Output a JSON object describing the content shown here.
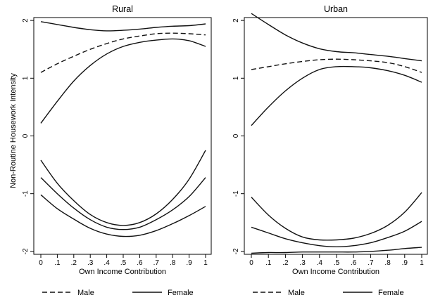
{
  "figure": {
    "ylabel": "Non-Routine Housework Intensity"
  },
  "chart_data": [
    {
      "type": "line",
      "title": "Rural",
      "xlabel": "Own Income Contribution",
      "ylabel": "Non-Routine Housework Intensity",
      "xlim": [
        0,
        1
      ],
      "ylim": [
        -2.05,
        2.05
      ],
      "xticks": [
        0,
        0.1,
        0.2,
        0.3,
        0.4,
        0.5,
        0.6,
        0.7,
        0.8,
        0.9,
        1
      ],
      "xtick_labels": [
        "0",
        ".1",
        ".2",
        ".3",
        ".4",
        ".5",
        ".6",
        ".7",
        ".8",
        ".9",
        "1"
      ],
      "yticks": [
        -2,
        -1,
        0,
        1,
        2
      ],
      "ytick_labels": [
        "-2",
        "-1",
        "0",
        "1",
        "2"
      ],
      "x": [
        0,
        0.1,
        0.2,
        0.3,
        0.4,
        0.5,
        0.6,
        0.7,
        0.8,
        0.9,
        1
      ],
      "series": [
        {
          "name": "Male",
          "style": "dashed",
          "values": [
            1.1,
            1.25,
            1.38,
            1.5,
            1.6,
            1.68,
            1.73,
            1.77,
            1.78,
            1.77,
            1.75
          ]
        },
        {
          "style": "solid",
          "values": [
            1.98,
            1.93,
            1.88,
            1.84,
            1.82,
            1.83,
            1.85,
            1.88,
            1.9,
            1.91,
            1.94
          ]
        },
        {
          "style": "solid",
          "values": [
            0.22,
            0.6,
            0.95,
            1.22,
            1.42,
            1.55,
            1.62,
            1.66,
            1.68,
            1.65,
            1.55
          ]
        },
        {
          "name": "Female",
          "style": "solid",
          "values": [
            -0.72,
            -1.0,
            -1.25,
            -1.45,
            -1.58,
            -1.62,
            -1.58,
            -1.45,
            -1.28,
            -1.05,
            -0.72
          ]
        },
        {
          "style": "solid",
          "values": [
            -0.42,
            -0.82,
            -1.12,
            -1.36,
            -1.5,
            -1.55,
            -1.5,
            -1.35,
            -1.1,
            -0.75,
            -0.25
          ]
        },
        {
          "style": "solid",
          "values": [
            -1.02,
            -1.26,
            -1.44,
            -1.6,
            -1.7,
            -1.74,
            -1.72,
            -1.64,
            -1.52,
            -1.38,
            -1.22
          ]
        }
      ],
      "legend": {
        "position": "bottom",
        "entries": [
          {
            "label": "Male",
            "style": "dashed"
          },
          {
            "label": "Female",
            "style": "solid"
          }
        ]
      }
    },
    {
      "type": "line",
      "title": "Urban",
      "xlabel": "Own Income Contribution",
      "xlim": [
        0,
        1
      ],
      "ylim": [
        -2.05,
        2.05
      ],
      "xticks": [
        0,
        0.1,
        0.2,
        0.3,
        0.4,
        0.5,
        0.6,
        0.7,
        0.8,
        0.9,
        1
      ],
      "xtick_labels": [
        "0",
        ".1",
        ".2",
        ".3",
        ".4",
        ".5",
        ".6",
        ".7",
        ".8",
        ".9",
        "1"
      ],
      "yticks": [
        -2,
        -1,
        0,
        1,
        2
      ],
      "ytick_labels": [
        "-2",
        "-1",
        "0",
        "1",
        "2"
      ],
      "x": [
        0,
        0.1,
        0.2,
        0.3,
        0.4,
        0.5,
        0.6,
        0.7,
        0.8,
        0.9,
        1
      ],
      "series": [
        {
          "name": "Male",
          "style": "dashed",
          "values": [
            1.15,
            1.2,
            1.25,
            1.29,
            1.32,
            1.33,
            1.32,
            1.3,
            1.27,
            1.2,
            1.1
          ]
        },
        {
          "style": "solid",
          "values": [
            2.12,
            1.93,
            1.75,
            1.61,
            1.51,
            1.46,
            1.44,
            1.41,
            1.38,
            1.34,
            1.3
          ]
        },
        {
          "style": "solid",
          "values": [
            0.18,
            0.5,
            0.78,
            1.0,
            1.15,
            1.2,
            1.2,
            1.18,
            1.13,
            1.05,
            0.93
          ]
        },
        {
          "name": "Female",
          "style": "solid",
          "values": [
            -1.58,
            -1.68,
            -1.78,
            -1.85,
            -1.9,
            -1.92,
            -1.9,
            -1.85,
            -1.76,
            -1.65,
            -1.48
          ]
        },
        {
          "style": "solid",
          "values": [
            -1.06,
            -1.37,
            -1.6,
            -1.75,
            -1.8,
            -1.8,
            -1.77,
            -1.69,
            -1.55,
            -1.32,
            -0.98
          ]
        },
        {
          "style": "solid",
          "values": [
            -2.03,
            -2.02,
            -2.02,
            -2.01,
            -2.01,
            -2.01,
            -2.01,
            -2.0,
            -1.98,
            -1.95,
            -1.93
          ]
        }
      ],
      "legend": {
        "position": "bottom",
        "entries": [
          {
            "label": "Male",
            "style": "dashed"
          },
          {
            "label": "Female",
            "style": "solid"
          }
        ]
      }
    }
  ]
}
